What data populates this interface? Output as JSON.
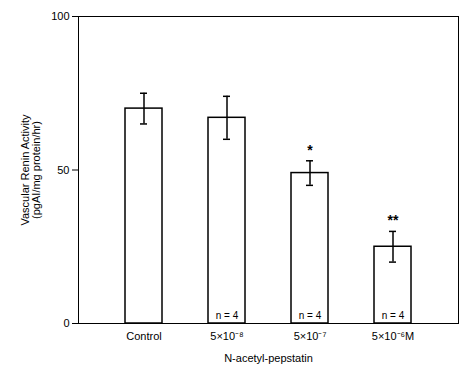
{
  "chart_data": {
    "type": "bar",
    "categories": [
      "Control",
      "5×10⁻⁸",
      "5×10⁻⁷",
      "5×10⁻⁶M"
    ],
    "values": [
      70,
      67,
      49,
      25
    ],
    "errors": [
      5,
      7,
      4,
      5
    ],
    "n_labels": [
      null,
      "n = 4",
      "n = 4",
      "n = 4"
    ],
    "sig_labels": [
      null,
      null,
      "*",
      "**"
    ],
    "ylabel": "Vascular Renin Activity\n(pgAI/mg protein/hr)",
    "xlabel": "N-acetyl-pepstatin",
    "color": "#ffffff",
    "ylim": [
      0,
      100
    ],
    "yticks": [
      0,
      50,
      100
    ],
    "grid": false
  }
}
